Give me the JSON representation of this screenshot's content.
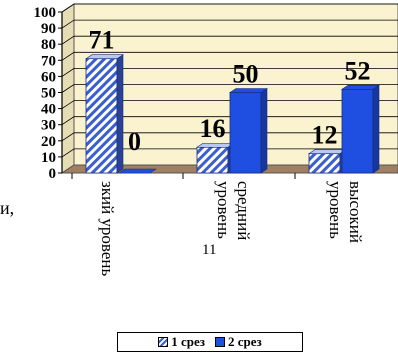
{
  "title": "",
  "chart_data": {
    "type": "bar",
    "categories": [
      "зкий уровень",
      "средний уровень",
      "высокий уровень"
    ],
    "series": [
      {
        "name": "1 срез",
        "values": [
          71,
          16,
          12
        ],
        "color": "#3a5fd0",
        "pattern": "diagonal-hatch"
      },
      {
        "name": "2 срез",
        "values": [
          0,
          50,
          52
        ],
        "color": "#1f4fe0"
      }
    ],
    "ylim": [
      0,
      100
    ],
    "yticks": [
      "0",
      "10",
      "20",
      "30",
      "40",
      "50",
      "60",
      "70",
      "80",
      "90",
      "100"
    ],
    "grid": true,
    "legend": "bottom",
    "plot_background": "#fbf3cf",
    "floor_color": "#a08060",
    "stray_text": "11"
  },
  "left_fragment": "и,"
}
